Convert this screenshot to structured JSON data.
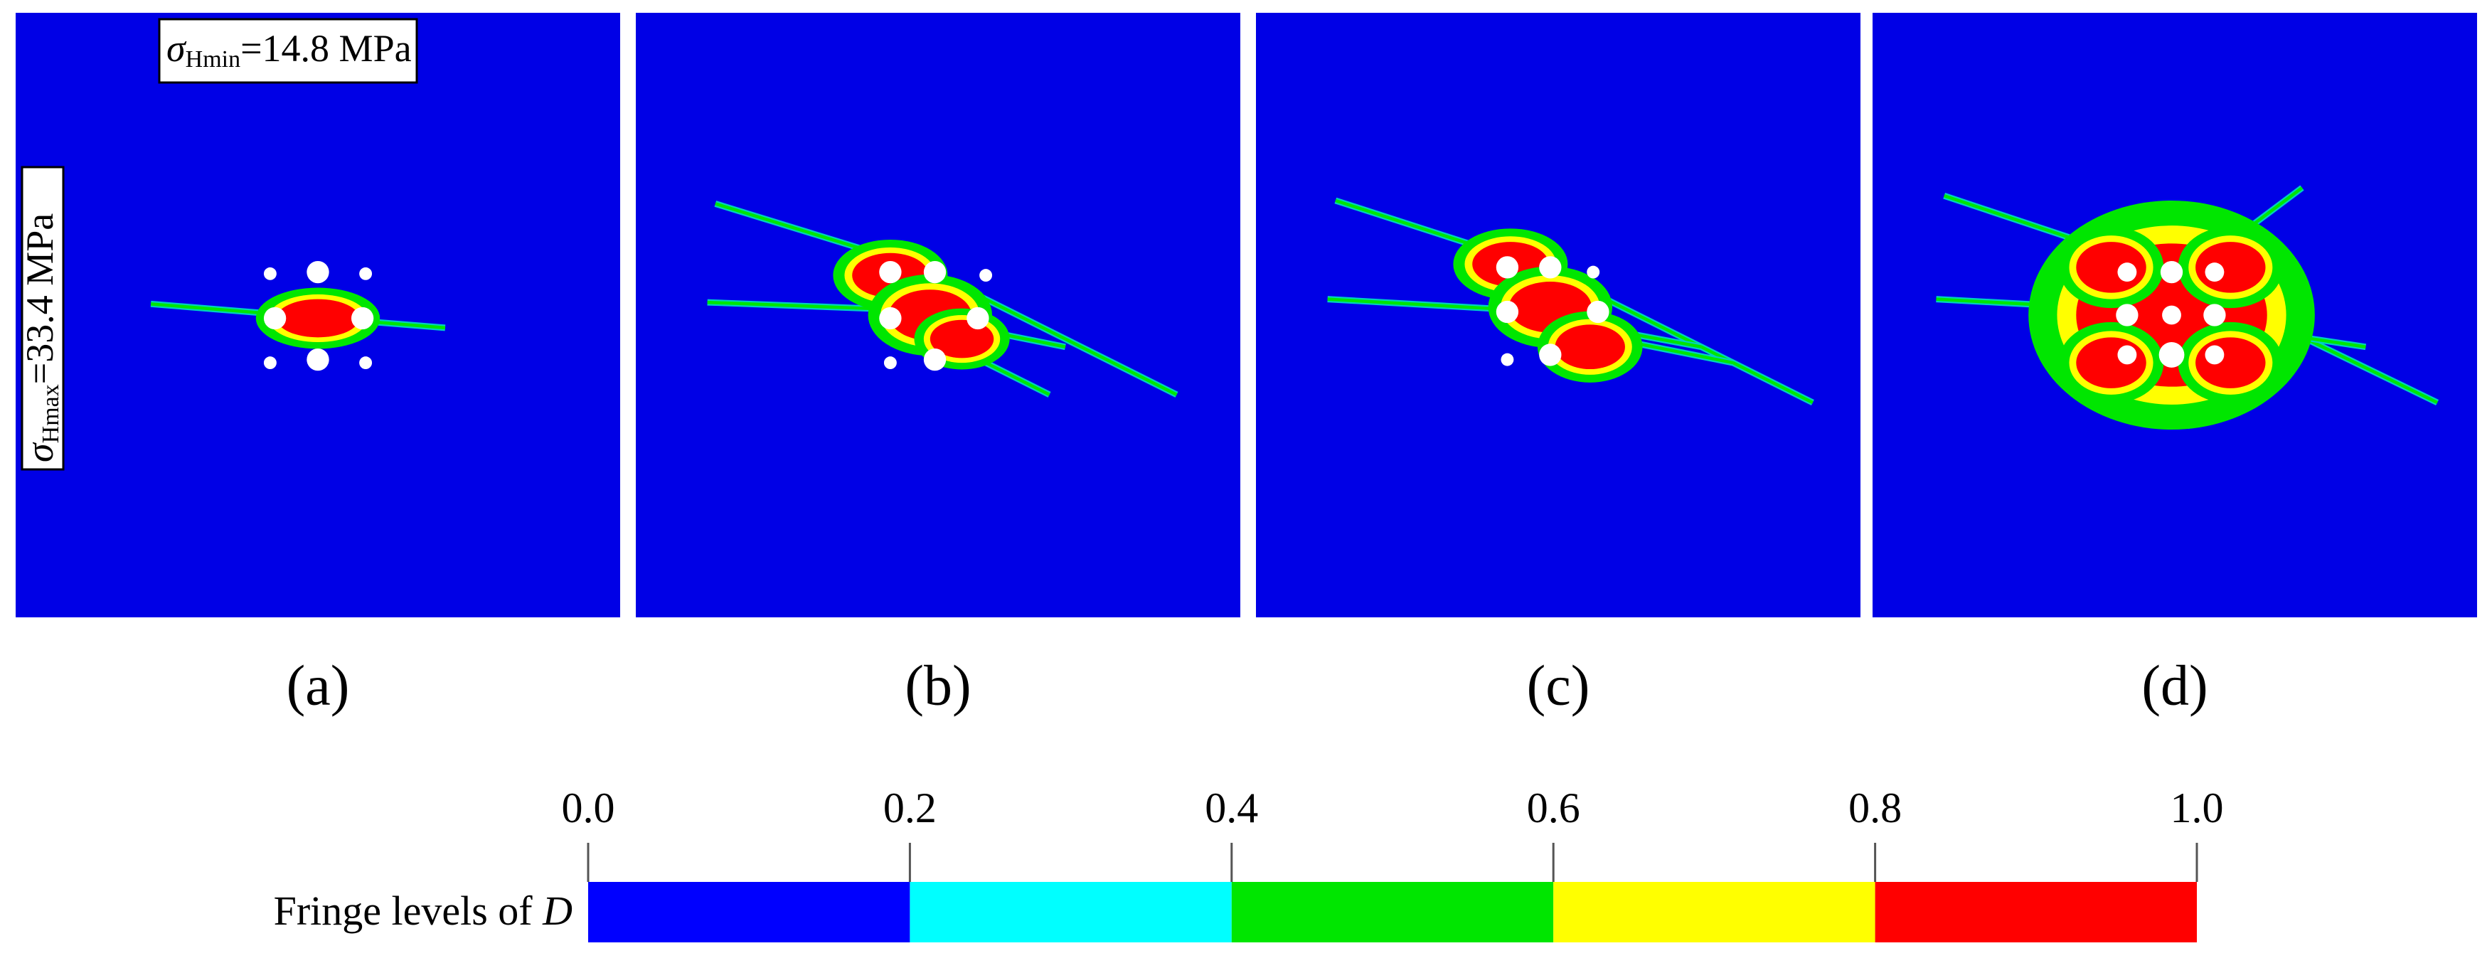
{
  "panels": [
    {
      "label": "(a)"
    },
    {
      "label": "(b)"
    },
    {
      "label": "(c)"
    },
    {
      "label": "(d)"
    }
  ],
  "stress_labels": {
    "symbol": "σ",
    "min_subscript": "Hmin",
    "min_value": "=14.8 MPa",
    "max_subscript": "Hmax",
    "max_value": "=33.4 MPa"
  },
  "colorbar": {
    "title": "Fringe levels of ",
    "variable": "D",
    "ticks": [
      {
        "value": 0,
        "label": "0.0"
      },
      {
        "value": 0.2,
        "label": "0.2"
      },
      {
        "value": 0.4,
        "label": "0.4"
      },
      {
        "value": 0.6,
        "label": "0.6"
      },
      {
        "value": 0.8,
        "label": "0.8"
      },
      {
        "value": 1,
        "label": "1.0"
      }
    ],
    "colors": [
      "#0000ff",
      "#00ffff",
      "#00e600",
      "#ffff00",
      "#ff0000"
    ]
  }
}
